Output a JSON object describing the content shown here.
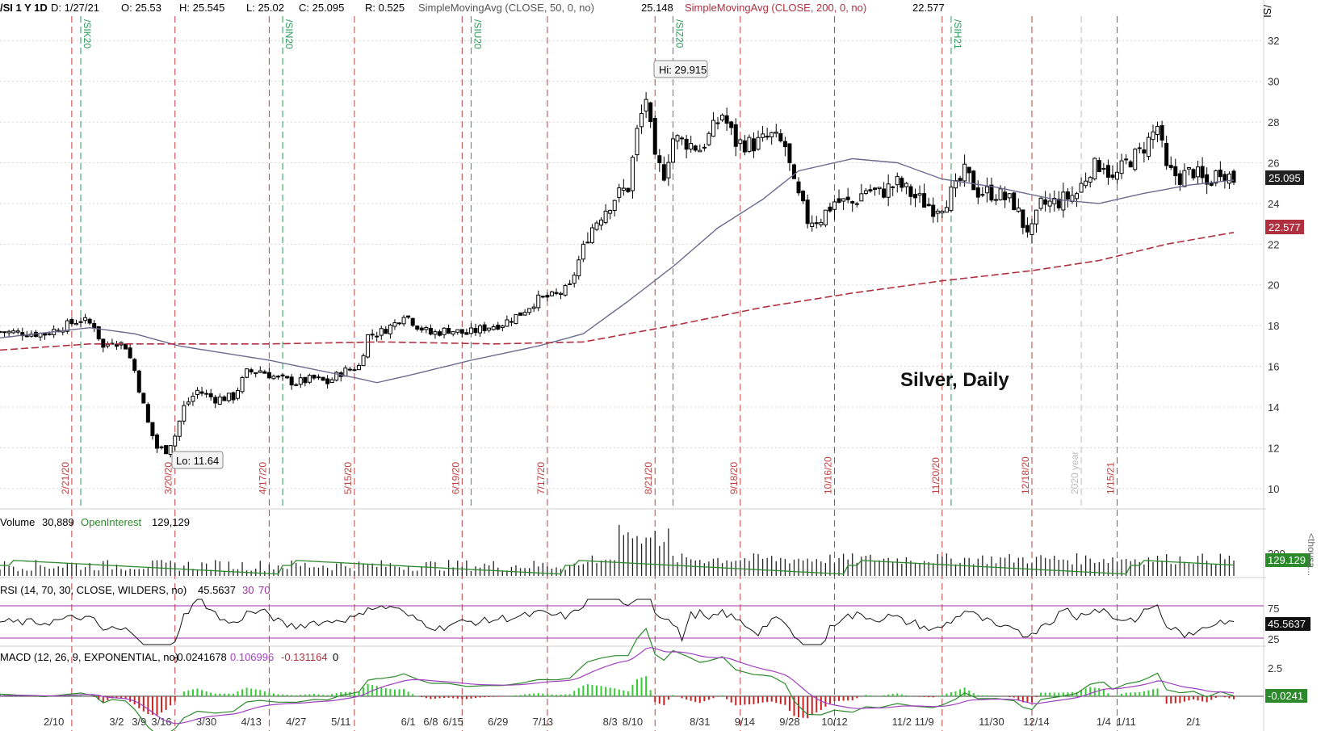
{
  "header": {
    "symbol": "/SI 1 Y 1D",
    "date": "D: 1/27/21",
    "open": "O: 25.53",
    "high": "H: 25.545",
    "low": "L: 25.02",
    "close": "C: 25.095",
    "range": "R: 0.525",
    "sma50_label": "SimpleMovingAvg (CLOSE, 50, 0, no)",
    "sma50_value": "25.148",
    "sma200_label": "SimpleMovingAvg (CLOSE, 200, 0, no)",
    "sma200_value": "22.577",
    "corner_symbol": "/SI"
  },
  "colors": {
    "candle": "#000000",
    "sma50": "#6b6b8f",
    "sma200": "#b03040",
    "expiry": "#2a9a5a",
    "event": "#c04040",
    "volume_line": "#2c8a2c",
    "rsi": "#111111",
    "rsi_over": "#b03040",
    "rsi_level": "#a030a0",
    "macd": "#2c8a2c",
    "macd_signal": "#a040c0",
    "hist_pos": "#33cc33",
    "hist_neg": "#cc2020"
  },
  "chart_data": {
    "type": "candlestick",
    "title": "Silver, Daily",
    "y_ticks": [
      10,
      12,
      14,
      16,
      18,
      20,
      22,
      24,
      26,
      28,
      30,
      32
    ],
    "ylim": [
      9,
      33.2
    ],
    "x_ticks": [
      "2/10",
      "3/2",
      "3/9",
      "3/16",
      "3/30",
      "4/13",
      "4/27",
      "5/11",
      "6/1",
      "6/8",
      "6/15",
      "6/29",
      "7/13",
      "8/3",
      "8/10",
      "8/31",
      "9/14",
      "9/28",
      "10/12",
      "11/2",
      "11/9",
      "11/30",
      "12/14",
      "1/4",
      "1/11",
      "2/1"
    ],
    "price_path": [
      [
        0,
        17.7
      ],
      [
        10,
        17.6
      ],
      [
        18,
        18.3
      ],
      [
        21,
        18.0
      ],
      [
        23,
        16.9
      ],
      [
        25,
        17.3
      ],
      [
        28,
        17.0
      ],
      [
        30,
        15.8
      ],
      [
        33,
        13.2
      ],
      [
        35,
        12.0
      ],
      [
        37,
        11.9
      ],
      [
        39,
        12.6
      ],
      [
        41,
        14.0
      ],
      [
        44,
        14.8
      ],
      [
        48,
        14.4
      ],
      [
        52,
        14.5
      ],
      [
        55,
        15.7
      ],
      [
        58,
        15.8
      ],
      [
        62,
        15.4
      ],
      [
        66,
        15.2
      ],
      [
        70,
        15.4
      ],
      [
        73,
        15.2
      ],
      [
        76,
        15.7
      ],
      [
        80,
        16.0
      ],
      [
        82,
        17.5
      ],
      [
        85,
        17.7
      ],
      [
        88,
        18.1
      ],
      [
        90,
        18.6
      ],
      [
        93,
        18.0
      ],
      [
        96,
        17.6
      ],
      [
        100,
        17.8
      ],
      [
        104,
        17.6
      ],
      [
        108,
        17.9
      ],
      [
        112,
        18.1
      ],
      [
        116,
        18.6
      ],
      [
        120,
        19.3
      ],
      [
        124,
        19.5
      ],
      [
        127,
        19.9
      ],
      [
        129,
        21.2
      ],
      [
        131,
        22.5
      ],
      [
        134,
        23.5
      ],
      [
        137,
        24.3
      ],
      [
        140,
        24.8
      ],
      [
        142,
        27.5
      ],
      [
        144,
        29.2
      ],
      [
        146,
        26.0
      ],
      [
        148,
        25.5
      ],
      [
        150,
        27.2
      ],
      [
        153,
        27.0
      ],
      [
        156,
        26.7
      ],
      [
        158,
        27.3
      ],
      [
        161,
        28.4
      ],
      [
        164,
        27.0
      ],
      [
        168,
        26.9
      ],
      [
        172,
        27.3
      ],
      [
        175,
        26.8
      ],
      [
        177,
        24.8
      ],
      [
        180,
        23.2
      ],
      [
        183,
        23.3
      ],
      [
        186,
        24.1
      ],
      [
        190,
        24.0
      ],
      [
        193,
        24.7
      ],
      [
        196,
        24.5
      ],
      [
        200,
        25.0
      ],
      [
        204,
        24.3
      ],
      [
        208,
        23.8
      ],
      [
        210,
        24.0
      ],
      [
        213,
        24.7
      ],
      [
        215,
        25.5
      ],
      [
        218,
        24.6
      ],
      [
        222,
        24.5
      ],
      [
        226,
        24.0
      ],
      [
        228,
        23.0
      ],
      [
        230,
        22.6
      ],
      [
        232,
        23.9
      ],
      [
        236,
        24.1
      ],
      [
        240,
        24.5
      ],
      [
        243,
        25.7
      ],
      [
        246,
        26.0
      ],
      [
        248,
        25.1
      ],
      [
        251,
        26.0
      ],
      [
        254,
        26.5
      ],
      [
        256,
        27.1
      ],
      [
        258,
        27.8
      ],
      [
        260,
        25.6
      ],
      [
        263,
        25.3
      ],
      [
        266,
        25.6
      ],
      [
        269,
        24.9
      ],
      [
        272,
        25.7
      ],
      [
        275,
        25.2
      ]
    ],
    "sma50": [
      [
        0,
        17.4
      ],
      [
        20,
        17.9
      ],
      [
        30,
        17.6
      ],
      [
        40,
        17.0
      ],
      [
        60,
        16.3
      ],
      [
        80,
        15.4
      ],
      [
        84,
        15.2
      ],
      [
        92,
        15.6
      ],
      [
        105,
        16.3
      ],
      [
        120,
        17.0
      ],
      [
        130,
        17.6
      ],
      [
        140,
        19.2
      ],
      [
        150,
        20.9
      ],
      [
        160,
        22.8
      ],
      [
        170,
        24.2
      ],
      [
        178,
        25.6
      ],
      [
        190,
        26.2
      ],
      [
        200,
        26.0
      ],
      [
        210,
        25.2
      ],
      [
        222,
        24.8
      ],
      [
        235,
        24.2
      ],
      [
        245,
        24.0
      ],
      [
        255,
        24.5
      ],
      [
        265,
        24.9
      ],
      [
        275,
        25.148
      ]
    ],
    "sma200": [
      [
        0,
        16.8
      ],
      [
        20,
        17.1
      ],
      [
        40,
        17.1
      ],
      [
        60,
        17.1
      ],
      [
        85,
        17.2
      ],
      [
        110,
        17.1
      ],
      [
        130,
        17.2
      ],
      [
        150,
        18.0
      ],
      [
        170,
        18.9
      ],
      [
        190,
        19.6
      ],
      [
        210,
        20.2
      ],
      [
        230,
        20.7
      ],
      [
        245,
        21.2
      ],
      [
        260,
        22.0
      ],
      [
        275,
        22.577
      ]
    ],
    "expiry_labels": [
      "/SIK20",
      "/SIN20",
      "/SIU20",
      "/SIZ20",
      "/SIH21"
    ],
    "event_labels": [
      "2/21/20",
      "3/20/20",
      "4/17/20",
      "5/15/20",
      "6/19/20",
      "7/17/20",
      "8/21/20",
      "9/18/20",
      "10/16/20",
      "11/20/20",
      "12/18/20",
      "1/15/21"
    ],
    "year_label": "2020 year",
    "hi_label": "Hi: 29.915",
    "lo_label": "Lo: 11.64",
    "last_price": "25.095",
    "sma200_tag": "22.577"
  },
  "volume": {
    "label": "Volume",
    "value": "30,889",
    "oi_label": "OpenInterest",
    "oi_value": "129,129",
    "tick": "200",
    "tag": "129.129",
    "unit": "<thousa..."
  },
  "rsi": {
    "label": "RSI (14, 70, 30, CLOSE, WILDERS, no)",
    "value": "45.5637",
    "lo": "30",
    "hi": "70",
    "tick_hi": "75",
    "tick_lo": "25",
    "tag": "45.5637"
  },
  "macd": {
    "label": "MACD (12, 26, 9, EXPONENTIAL, no)",
    "v1": "-0.0241678",
    "v2": "0.106996",
    "v3": "-0.131164",
    "v4": "0",
    "tick": "2.5",
    "tag": "-0.0241"
  }
}
